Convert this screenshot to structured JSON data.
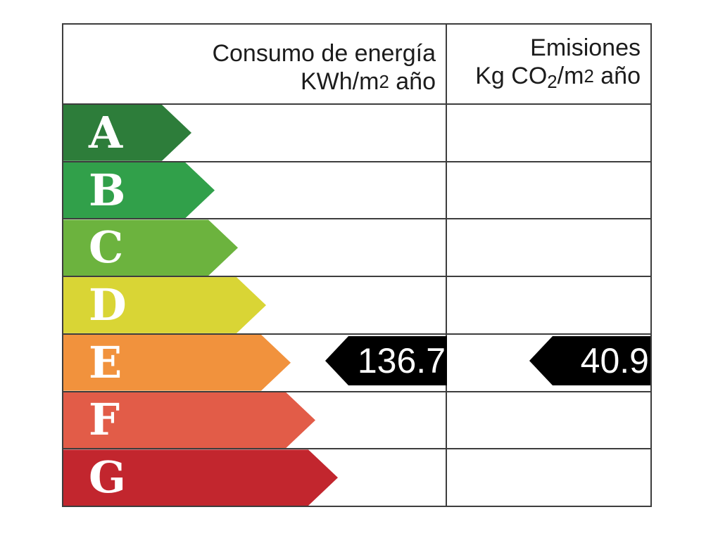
{
  "header": {
    "consumption_title": "Consumo de energía",
    "consumption_unit_base": "KWh/m",
    "consumption_unit_exp": "2",
    "consumption_unit_tail": " año",
    "emissions_title": "Emisiones",
    "emissions_unit_pre": "Kg CO",
    "emissions_unit_sub": "2",
    "emissions_unit_mid": "/m",
    "emissions_unit_exp": "2",
    "emissions_unit_tail": " año"
  },
  "ratings": [
    {
      "letter": "A",
      "color": "#2d7d3a"
    },
    {
      "letter": "B",
      "color": "#31a04a"
    },
    {
      "letter": "C",
      "color": "#6cb33e"
    },
    {
      "letter": "D",
      "color": "#d9d535"
    },
    {
      "letter": "E",
      "color": "#f1923d"
    },
    {
      "letter": "F",
      "color": "#e25c48"
    },
    {
      "letter": "G",
      "color": "#c2262e"
    }
  ],
  "result": {
    "rating_row": "E",
    "consumption_value": "136.7",
    "emissions_value": "40.9",
    "marker_color": "#000000",
    "marker_text_color": "#ffffff"
  },
  "colors": {
    "border": "#3d3d3d",
    "background": "#ffffff",
    "header_text": "#1c1c1c"
  },
  "chart_data": {
    "type": "bar",
    "title": "",
    "categories": [
      "A",
      "B",
      "C",
      "D",
      "E",
      "F",
      "G"
    ],
    "scale_colors": [
      "#2d7d3a",
      "#31a04a",
      "#6cb33e",
      "#d9d535",
      "#f1923d",
      "#e25c48",
      "#c2262e"
    ],
    "bar_relative_lengths": [
      0.47,
      0.55,
      0.64,
      0.74,
      0.83,
      0.92,
      1.0
    ],
    "columns": [
      {
        "label": "Consumo de energía KWh/m2 año",
        "value": 136.7,
        "rating": "E"
      },
      {
        "label": "Emisiones Kg CO2/m2 año",
        "value": 40.9,
        "rating": "E"
      }
    ],
    "legend_position": "none",
    "grid": false
  }
}
